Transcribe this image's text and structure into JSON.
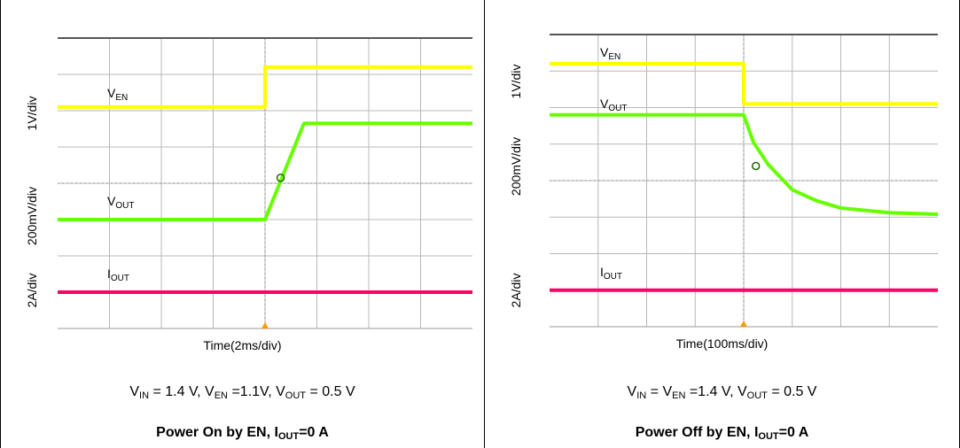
{
  "colors": {
    "ven": "#ffff00",
    "vout": "#66ff00",
    "iout": "#ff0066",
    "grid": "#b8b8b8",
    "frame_top": "#555555",
    "trigger": "#ff9900"
  },
  "panels": [
    {
      "time_label": "Time(2ms/div)",
      "y_labels": [
        "1V/div",
        "200mV/div",
        "2A/div"
      ],
      "trace_labels": {
        "ven": "V",
        "ven_sub": "EN",
        "vout": "V",
        "vout_sub": "OUT",
        "iout": "I",
        "iout_sub": "OUT"
      },
      "condition": {
        "p1": "V",
        "s1": "IN",
        "t1": " = 1.4 V, V",
        "s2": "EN",
        "t2": " =1.1V, V",
        "s3": "OUT",
        "t3": " = 0.5 V"
      },
      "title": {
        "pre": "Power On by EN, I",
        "sub": "OUT",
        "post": "=0 A"
      }
    },
    {
      "time_label": "Time(100ms/div)",
      "y_labels": [
        "1V/div",
        "200mV/div",
        "2A/div"
      ],
      "trace_labels": {
        "ven": "V",
        "ven_sub": "EN",
        "vout": "V",
        "vout_sub": "OUT",
        "iout": "I",
        "iout_sub": "OUT"
      },
      "condition": {
        "p1": "V",
        "s1": "IN",
        "t1": " = V",
        "s2": "EN",
        "t2": " =1.4 V, V",
        "s3": "OUT",
        "t3": " = 0.5 V"
      },
      "title": {
        "pre": "Power Off by EN, I",
        "sub": "OUT",
        "post": "=0 A"
      }
    }
  ],
  "chart_data": [
    {
      "type": "line",
      "title": "Power On by EN, IOUT=0 A",
      "xlabel": "Time(2ms/div)",
      "x_unit": "div",
      "xlim": [
        0,
        8
      ],
      "ylim_div": [
        0,
        8
      ],
      "series": [
        {
          "name": "VEN",
          "x": [
            0,
            4.0,
            4.0,
            8
          ],
          "y_div": [
            6.1,
            6.1,
            7.2,
            7.2
          ]
        },
        {
          "name": "VOUT",
          "x": [
            0,
            4.0,
            4.75,
            8
          ],
          "y_div": [
            3.0,
            3.0,
            5.65,
            5.65
          ]
        },
        {
          "name": "IOUT",
          "x": [
            0,
            8
          ],
          "y_div": [
            1.0,
            1.0
          ]
        }
      ]
    },
    {
      "type": "line",
      "title": "Power Off by EN, IOUT=0 A",
      "xlabel": "Time(100ms/div)",
      "x_unit": "div",
      "xlim": [
        0,
        8
      ],
      "ylim_div": [
        0,
        8
      ],
      "series": [
        {
          "name": "VEN",
          "x": [
            0,
            4.0,
            4.0,
            8
          ],
          "y_div": [
            7.2,
            7.2,
            6.1,
            6.1
          ]
        },
        {
          "name": "VOUT",
          "x": [
            0,
            4.0,
            4.2,
            4.5,
            5.0,
            5.5,
            6.0,
            7.0,
            8.0
          ],
          "y_div": [
            5.8,
            5.8,
            5.05,
            4.45,
            3.75,
            3.45,
            3.25,
            3.12,
            3.08
          ]
        },
        {
          "name": "IOUT",
          "x": [
            0,
            8
          ],
          "y_div": [
            1.0,
            1.0
          ]
        }
      ]
    }
  ]
}
